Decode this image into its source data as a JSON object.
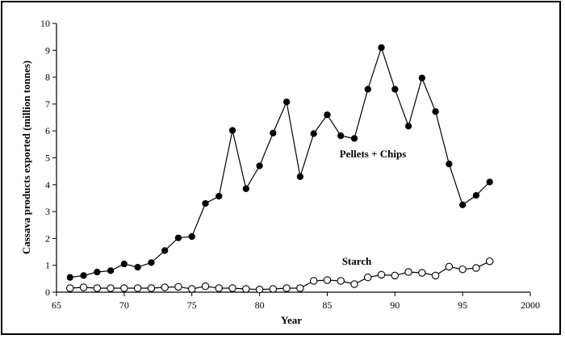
{
  "chart_data": {
    "type": "line",
    "xlabel": "Year",
    "ylabel": "Cassava products exported (million tonnes)",
    "xlim": [
      65,
      2000
    ],
    "ylim": [
      0,
      10
    ],
    "x_ticks": [
      65,
      70,
      75,
      80,
      85,
      90,
      95,
      2000
    ],
    "x_tick_labels": [
      "65",
      "70",
      "75",
      "80",
      "85",
      "90",
      "95",
      "2000"
    ],
    "y_ticks": [
      0,
      1,
      2,
      3,
      4,
      5,
      6,
      7,
      8,
      9,
      10
    ],
    "y_tick_labels": [
      "0",
      "1",
      "2",
      "3",
      "4",
      "5",
      "6",
      "7",
      "8",
      "9",
      "10"
    ],
    "grid": false,
    "x": [
      66,
      67,
      68,
      69,
      70,
      71,
      72,
      73,
      74,
      75,
      76,
      77,
      78,
      79,
      80,
      81,
      82,
      83,
      84,
      85,
      86,
      87,
      88,
      89,
      90,
      91,
      92,
      93,
      94,
      95,
      96,
      97
    ],
    "series": [
      {
        "name": "Pellets + Chips",
        "marker": "filled-circle",
        "color": "#000000",
        "values": [
          0.55,
          0.62,
          0.75,
          0.8,
          1.05,
          0.93,
          1.1,
          1.55,
          2.02,
          2.07,
          3.3,
          3.57,
          6.02,
          3.85,
          4.7,
          5.92,
          7.08,
          4.3,
          5.9,
          6.6,
          5.82,
          5.72,
          7.55,
          9.1,
          7.55,
          6.18,
          7.97,
          6.72,
          4.77,
          3.25,
          3.6,
          4.1
        ]
      },
      {
        "name": "Starch",
        "marker": "open-circle",
        "color": "#000000",
        "values": [
          0.15,
          0.18,
          0.15,
          0.15,
          0.15,
          0.15,
          0.15,
          0.18,
          0.2,
          0.12,
          0.22,
          0.15,
          0.15,
          0.12,
          0.1,
          0.12,
          0.15,
          0.15,
          0.42,
          0.45,
          0.42,
          0.3,
          0.55,
          0.65,
          0.62,
          0.75,
          0.72,
          0.62,
          0.95,
          0.85,
          0.9,
          1.15
        ]
      }
    ]
  }
}
